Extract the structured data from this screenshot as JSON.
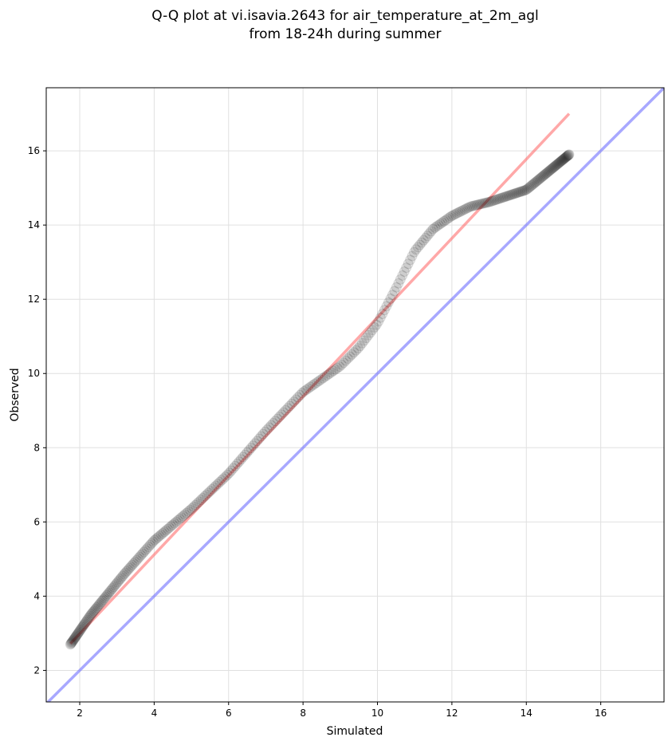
{
  "chart_data": {
    "type": "scatter",
    "title": [
      "Q-Q plot at vi.isavia.2643 for air_temperature_at_2m_agl",
      "from 18-24h during summer"
    ],
    "xlabel": "Simulated",
    "ylabel": "Observed",
    "xlim": [
      1.1,
      17.7
    ],
    "ylim": [
      1.15,
      17.7
    ],
    "xticks": [
      2,
      4,
      6,
      8,
      10,
      12,
      14,
      16
    ],
    "yticks": [
      2,
      4,
      6,
      8,
      10,
      12,
      14,
      16
    ],
    "grid": true,
    "legend": "none",
    "colors": {
      "points": "#000000",
      "fit_line": "#ff6e6e",
      "identity_line": "#6e6eff",
      "grid": "#e0e0e0"
    },
    "fit_line": {
      "x": [
        1.75,
        15.15
      ],
      "y": [
        2.72,
        17.0
      ]
    },
    "identity_line": {
      "x": [
        1.1,
        17.7
      ],
      "y": [
        1.1,
        17.7
      ]
    },
    "quantile_curve": {
      "x": [
        1.75,
        2.3,
        3.2,
        4.0,
        5.0,
        6.0,
        7.0,
        8.0,
        9.0,
        9.5,
        10.0,
        10.5,
        11.0,
        11.5,
        12.0,
        12.5,
        13.0,
        14.0,
        15.15
      ],
      "y": [
        2.7,
        3.5,
        4.6,
        5.5,
        6.35,
        7.3,
        8.45,
        9.5,
        10.2,
        10.7,
        11.35,
        12.3,
        13.3,
        13.9,
        14.25,
        14.5,
        14.62,
        14.95,
        15.9
      ]
    },
    "n_points": 330
  }
}
